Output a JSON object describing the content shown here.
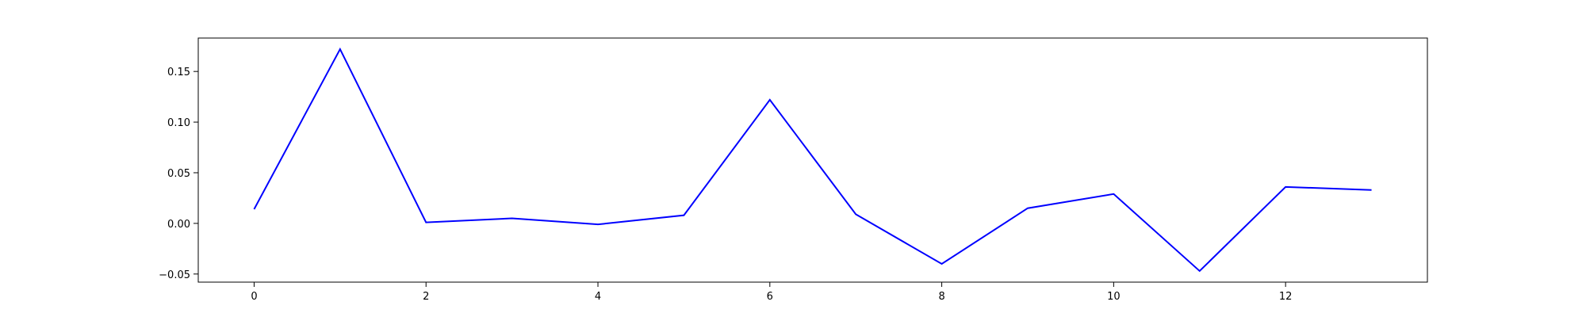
{
  "chart_data": {
    "type": "line",
    "title": "",
    "xlabel": "",
    "ylabel": "",
    "grid": false,
    "xlim": [
      -0.65,
      13.65
    ],
    "ylim": [
      -0.058,
      0.183
    ],
    "x_ticks": [
      0,
      2,
      4,
      6,
      8,
      10,
      12
    ],
    "x_tick_labels": [
      "0",
      "2",
      "4",
      "6",
      "8",
      "10",
      "12"
    ],
    "y_ticks": [
      -0.05,
      0.0,
      0.05,
      0.1,
      0.15
    ],
    "y_tick_labels": [
      "−0.05",
      "0.00",
      "0.05",
      "0.10",
      "0.15"
    ],
    "x": [
      0,
      1,
      2,
      3,
      4,
      5,
      6,
      7,
      8,
      9,
      10,
      11,
      12,
      13
    ],
    "series": [
      {
        "color": "#0000ff",
        "values": [
          0.014,
          0.172,
          0.001,
          0.005,
          -0.001,
          0.008,
          0.122,
          0.009,
          -0.04,
          0.015,
          0.029,
          -0.047,
          0.036,
          0.033
        ]
      }
    ]
  }
}
